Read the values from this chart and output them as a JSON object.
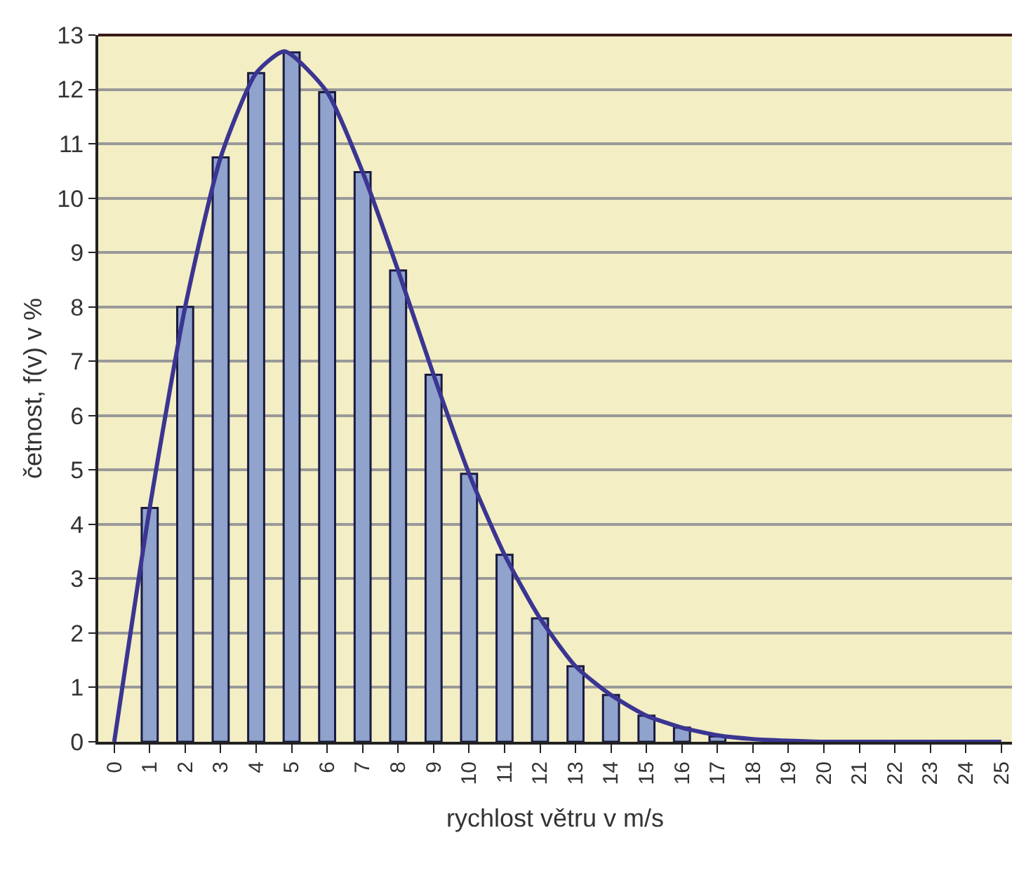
{
  "chart_data": {
    "type": "bar",
    "xlabel": "rychlost větru v m/s",
    "ylabel": "četnost, f(v) v %",
    "series": [
      {
        "color": "#8fa3cc",
        "x": [
          1,
          2,
          3,
          4,
          5,
          6,
          7,
          8,
          9,
          10,
          11,
          12,
          13,
          14,
          15,
          16,
          17
        ],
        "values": [
          4.3,
          8.0,
          10.75,
          12.3,
          12.68,
          11.95,
          10.48,
          8.67,
          6.75,
          4.93,
          3.44,
          2.27,
          1.39,
          0.86,
          0.48,
          0.26,
          0.1
        ]
      },
      {
        "type": "line",
        "color": "#3b3592",
        "x": [
          0,
          1,
          2,
          3,
          4,
          4.8,
          6,
          7,
          8,
          9,
          10,
          11,
          12,
          13,
          14,
          15,
          16,
          17,
          18,
          19,
          20,
          25
        ],
        "values": [
          0,
          4.3,
          8.0,
          10.75,
          12.3,
          12.7,
          11.95,
          10.48,
          8.67,
          6.75,
          4.93,
          3.44,
          2.27,
          1.39,
          0.86,
          0.48,
          0.26,
          0.12,
          0.05,
          0.02,
          0,
          0
        ]
      }
    ],
    "xlim": [
      -0.45,
      25.3
    ],
    "xticks": [
      0,
      1,
      2,
      3,
      4,
      5,
      6,
      7,
      8,
      9,
      10,
      11,
      12,
      13,
      14,
      15,
      16,
      17,
      18,
      19,
      20,
      21,
      22,
      23,
      24,
      25
    ],
    "ylim": [
      0,
      13
    ],
    "yticks": [
      0,
      1,
      2,
      3,
      4,
      5,
      6,
      7,
      8,
      9,
      10,
      11,
      12,
      13
    ],
    "grid": "y",
    "marker": "none",
    "line_style": "solid"
  }
}
